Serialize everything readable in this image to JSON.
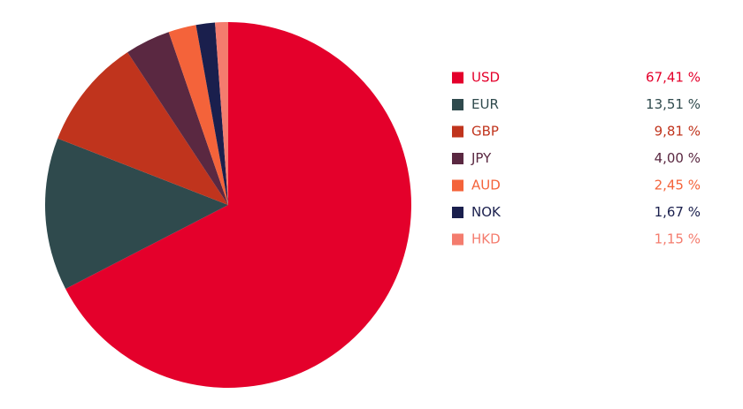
{
  "chart_data": {
    "type": "pie",
    "categories": [
      "USD",
      "EUR",
      "GBP",
      "JPY",
      "AUD",
      "NOK",
      "HKD"
    ],
    "values": [
      67.41,
      13.51,
      9.81,
      4.0,
      2.45,
      1.67,
      1.15
    ],
    "value_labels": [
      "67,41 %",
      "13,51 %",
      "9,81 %",
      "4,00 %",
      "2,45 %",
      "1,67 %",
      "1,15 %"
    ],
    "colors": [
      "#e4002b",
      "#2f4a4d",
      "#c0341d",
      "#5a2841",
      "#f4633a",
      "#1a1f4d",
      "#f47c6e"
    ],
    "legend": "right"
  }
}
